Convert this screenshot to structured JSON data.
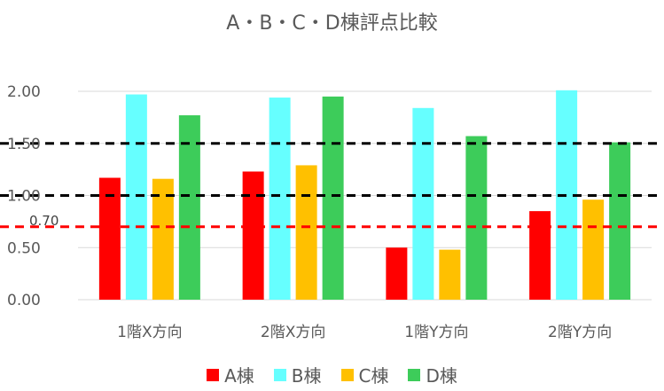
{
  "chart_data": {
    "type": "bar",
    "title": "A・B・C・D棟評点比較",
    "categories": [
      "1階X方向",
      "2階X方向",
      "1階Y方向",
      "2階Y方向"
    ],
    "series": [
      {
        "name": "A棟",
        "color": "#FF0000",
        "values": [
          1.17,
          1.23,
          0.5,
          0.85
        ]
      },
      {
        "name": "B棟",
        "color": "#66FFFF",
        "values": [
          1.97,
          1.94,
          1.84,
          2.01
        ]
      },
      {
        "name": "C棟",
        "color": "#FFC000",
        "values": [
          1.16,
          1.29,
          0.48,
          0.96
        ]
      },
      {
        "name": "D棟",
        "color": "#3DCC5A",
        "values": [
          1.77,
          1.95,
          1.57,
          1.51
        ]
      }
    ],
    "y_ticks": [
      "0.00",
      "0.50",
      "1.00",
      "1.50",
      "2.00"
    ],
    "ylim": [
      0,
      2.0
    ],
    "reference_lines": [
      {
        "value": 1.5,
        "color": "#000000",
        "label": ""
      },
      {
        "value": 1.0,
        "color": "#000000",
        "label": ""
      },
      {
        "value": 0.7,
        "color": "#FF0000",
        "label": "0.70"
      }
    ],
    "grid": true,
    "legend_position": "bottom"
  }
}
